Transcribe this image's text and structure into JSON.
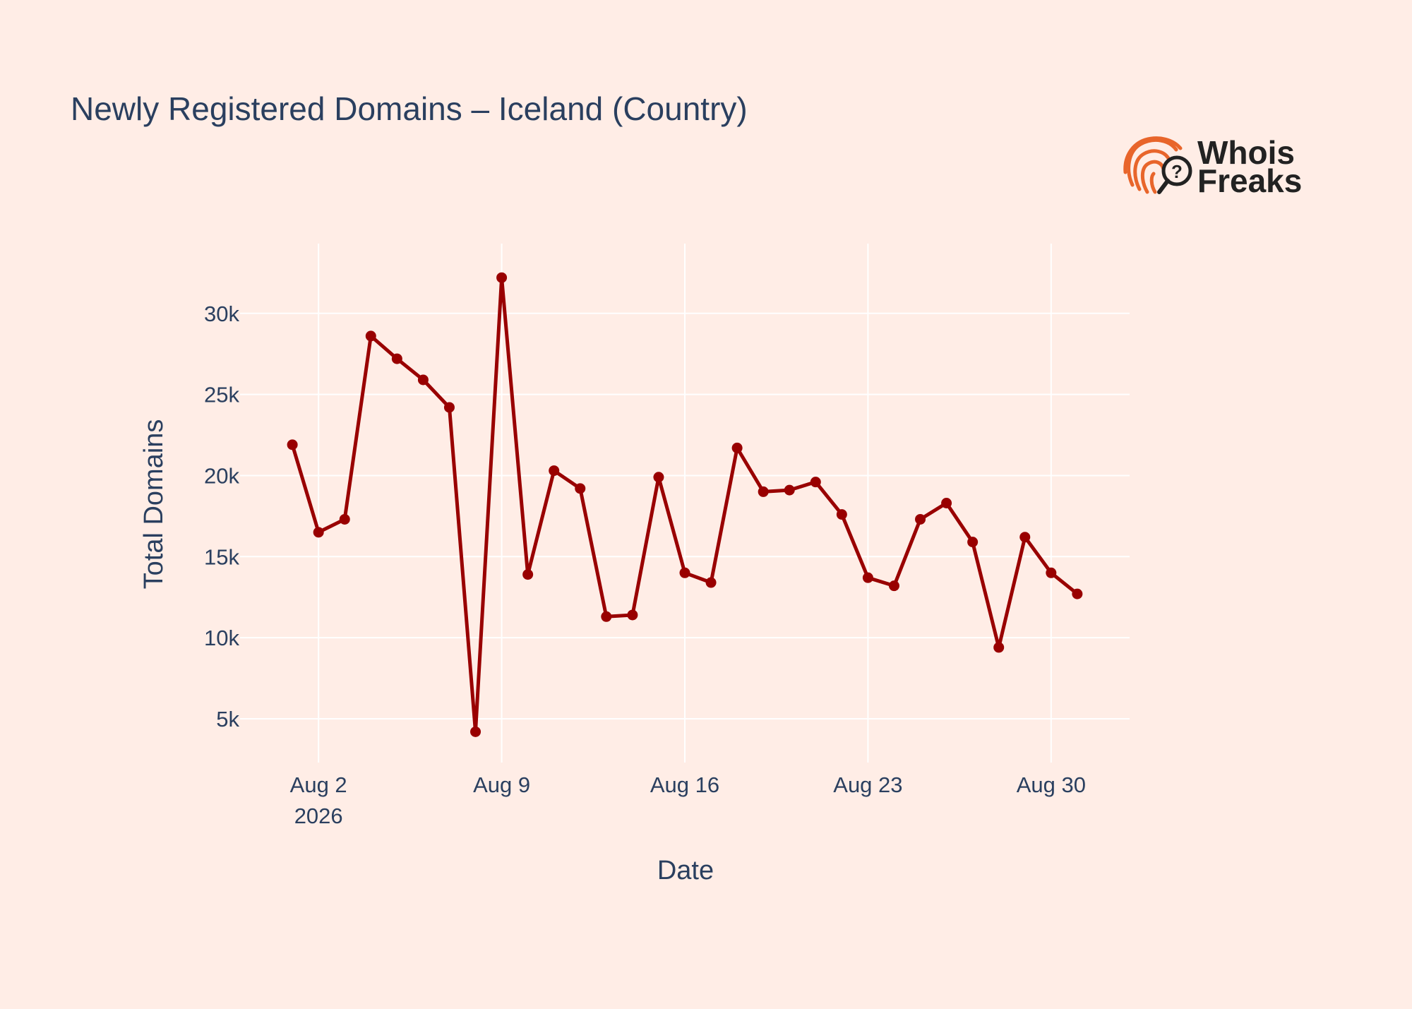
{
  "chart_data": {
    "type": "line",
    "title": "Newly Registered Domains – Iceland (Country)",
    "xlabel": "Date",
    "ylabel": "Total Domains",
    "x_ticks": [
      {
        "date": "2026-08-02",
        "label": "Aug 2",
        "sublabel": "2026"
      },
      {
        "date": "2026-08-09",
        "label": "Aug 9"
      },
      {
        "date": "2026-08-16",
        "label": "Aug 16"
      },
      {
        "date": "2026-08-23",
        "label": "Aug 23"
      },
      {
        "date": "2026-08-30",
        "label": "Aug 30"
      }
    ],
    "y_ticks": [
      {
        "value": 5000,
        "label": "5k"
      },
      {
        "value": 10000,
        "label": "10k"
      },
      {
        "value": 15000,
        "label": "15k"
      },
      {
        "value": 20000,
        "label": "20k"
      },
      {
        "value": 25000,
        "label": "25k"
      },
      {
        "value": 30000,
        "label": "30k"
      }
    ],
    "xlim": [
      "2026-07-30",
      "2026-09-02"
    ],
    "ylim": [
      2300,
      34300
    ],
    "grid": true,
    "legend": "none",
    "line_color": "#990000",
    "x": [
      "2026-08-01",
      "2026-08-02",
      "2026-08-03",
      "2026-08-04",
      "2026-08-05",
      "2026-08-06",
      "2026-08-07",
      "2026-08-08",
      "2026-08-09",
      "2026-08-10",
      "2026-08-11",
      "2026-08-12",
      "2026-08-13",
      "2026-08-14",
      "2026-08-15",
      "2026-08-16",
      "2026-08-17",
      "2026-08-18",
      "2026-08-19",
      "2026-08-20",
      "2026-08-21",
      "2026-08-22",
      "2026-08-23",
      "2026-08-24",
      "2026-08-25",
      "2026-08-26",
      "2026-08-27",
      "2026-08-28",
      "2026-08-29",
      "2026-08-30",
      "2026-08-31"
    ],
    "y": [
      21900,
      16500,
      17300,
      28600,
      27200,
      25900,
      24200,
      4200,
      32200,
      13900,
      20300,
      19200,
      11300,
      11400,
      19900,
      14000,
      13400,
      21700,
      19000,
      19100,
      19600,
      17600,
      13700,
      13200,
      17300,
      18300,
      15900,
      9400,
      16200,
      14000,
      12700
    ]
  },
  "logo": {
    "text_line1": "Whois",
    "text_line2": "Freaks",
    "accent_color": "#e8652b"
  }
}
